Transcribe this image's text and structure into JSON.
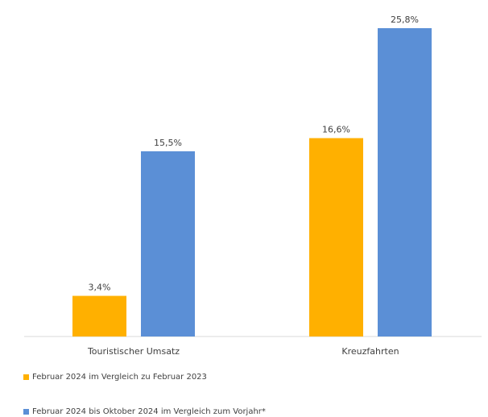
{
  "chart_data": {
    "type": "bar",
    "categories": [
      "Touristischer Umsatz",
      "Kreuzfahrten"
    ],
    "series": [
      {
        "name": "Februar 2024 im Vergleich zu Februar 2023",
        "values": [
          3.4,
          16.6
        ],
        "labels": [
          "3,4%",
          "16,6%"
        ],
        "color": "#FFB000"
      },
      {
        "name": "Februar 2024 bis Oktober 2024 im Vergleich zum Vorjahr*",
        "values": [
          15.5,
          25.8
        ],
        "labels": [
          "15,5%",
          "25,8%"
        ],
        "color": "#5B8FD6"
      }
    ],
    "ylim": [
      0,
      26.8
    ],
    "grid": false,
    "legend_position": "bottom-left"
  }
}
